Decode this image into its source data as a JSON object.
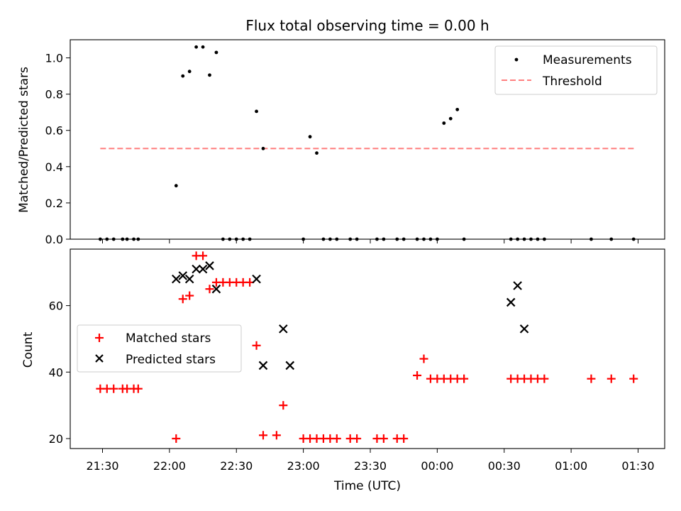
{
  "chart_data": [
    {
      "type": "scatter",
      "title": "Flux total observing time = 0.00 h",
      "xlabel": "",
      "ylabel": "Matched/Predicted stars",
      "ylim": [
        0,
        1.1
      ],
      "yticks": [
        "0.0",
        "0.2",
        "0.4",
        "0.6",
        "0.8",
        "1.0"
      ],
      "legend_position": "top-right",
      "legend": [
        "Measurements",
        "Threshold"
      ],
      "threshold": {
        "y": 0.5,
        "x_from": "21:29",
        "x_to": "01:29",
        "color": "#ff7f7f"
      },
      "series": [
        {
          "name": "Measurements",
          "color": "#000000",
          "x": [
            "21:29",
            "21:32",
            "21:35",
            "21:39",
            "21:41",
            "21:44",
            "21:46",
            "22:03",
            "22:06",
            "22:09",
            "22:12",
            "22:15",
            "22:18",
            "22:21",
            "22:24",
            "22:27",
            "22:30",
            "22:33",
            "22:36",
            "22:39",
            "22:42",
            "23:00",
            "23:03",
            "23:06",
            "23:09",
            "23:12",
            "23:15",
            "23:21",
            "23:24",
            "23:33",
            "23:36",
            "23:42",
            "23:45",
            "23:51",
            "23:54",
            "23:57",
            "00:00",
            "00:03",
            "00:06",
            "00:09",
            "00:12",
            "00:33",
            "00:36",
            "00:39",
            "00:42",
            "00:45",
            "00:48",
            "01:09",
            "01:18",
            "01:28"
          ],
          "y": [
            0,
            0,
            0,
            0,
            0,
            0,
            0,
            0.295,
            0.9,
            0.925,
            1.06,
            1.06,
            0.905,
            1.03,
            0,
            0,
            0,
            0,
            0,
            0.705,
            0.5,
            0,
            0.565,
            0.475,
            0,
            0,
            0,
            0,
            0,
            0,
            0,
            0,
            0,
            0,
            0,
            0,
            0,
            0.64,
            0.665,
            0.715,
            0,
            0,
            0,
            0,
            0,
            0,
            0,
            0,
            0,
            0
          ]
        }
      ]
    },
    {
      "type": "scatter",
      "title": "",
      "xlabel": "Time (UTC)",
      "ylabel": "Count",
      "ylim": [
        17,
        77
      ],
      "yticks": [
        "20",
        "40",
        "60"
      ],
      "xticks": [
        "21:30",
        "22:00",
        "22:30",
        "23:00",
        "23:30",
        "00:00",
        "00:30",
        "01:00",
        "01:30"
      ],
      "legend_position": "center-left",
      "legend": [
        "Matched stars",
        "Predicted stars"
      ],
      "series": [
        {
          "name": "Matched stars",
          "marker": "+",
          "color": "#ff0000",
          "x": [
            "21:29",
            "21:32",
            "21:35",
            "21:39",
            "21:41",
            "21:44",
            "21:46",
            "22:03",
            "22:06",
            "22:09",
            "22:12",
            "22:15",
            "22:18",
            "22:21",
            "22:24",
            "22:27",
            "22:30",
            "22:33",
            "22:36",
            "22:39",
            "22:42",
            "22:48",
            "22:51",
            "23:00",
            "23:03",
            "23:06",
            "23:09",
            "23:12",
            "23:15",
            "23:21",
            "23:24",
            "23:33",
            "23:36",
            "23:42",
            "23:45",
            "23:51",
            "23:54",
            "23:57",
            "00:00",
            "00:03",
            "00:06",
            "00:09",
            "00:12",
            "00:33",
            "00:36",
            "00:39",
            "00:42",
            "00:45",
            "00:48",
            "01:09",
            "01:18",
            "01:28"
          ],
          "y": [
            35,
            35,
            35,
            35,
            35,
            35,
            35,
            20,
            62,
            63,
            75,
            75,
            65,
            67,
            67,
            67,
            67,
            67,
            67,
            48,
            21,
            21,
            30,
            20,
            20,
            20,
            20,
            20,
            20,
            20,
            20,
            20,
            20,
            20,
            20,
            39,
            44,
            38,
            38,
            38,
            38,
            38,
            38,
            38,
            38,
            38,
            38,
            38,
            38,
            38,
            38,
            38
          ]
        },
        {
          "name": "Predicted stars",
          "marker": "x",
          "color": "#000000",
          "x": [
            "22:03",
            "22:06",
            "22:09",
            "22:12",
            "22:15",
            "22:18",
            "22:21",
            "22:39",
            "22:42",
            "22:51",
            "22:54",
            "00:33",
            "00:36",
            "00:39"
          ],
          "y": [
            68,
            69,
            68,
            71,
            71,
            72,
            65,
            68,
            42,
            53,
            42,
            61,
            66,
            53
          ]
        }
      ]
    }
  ]
}
